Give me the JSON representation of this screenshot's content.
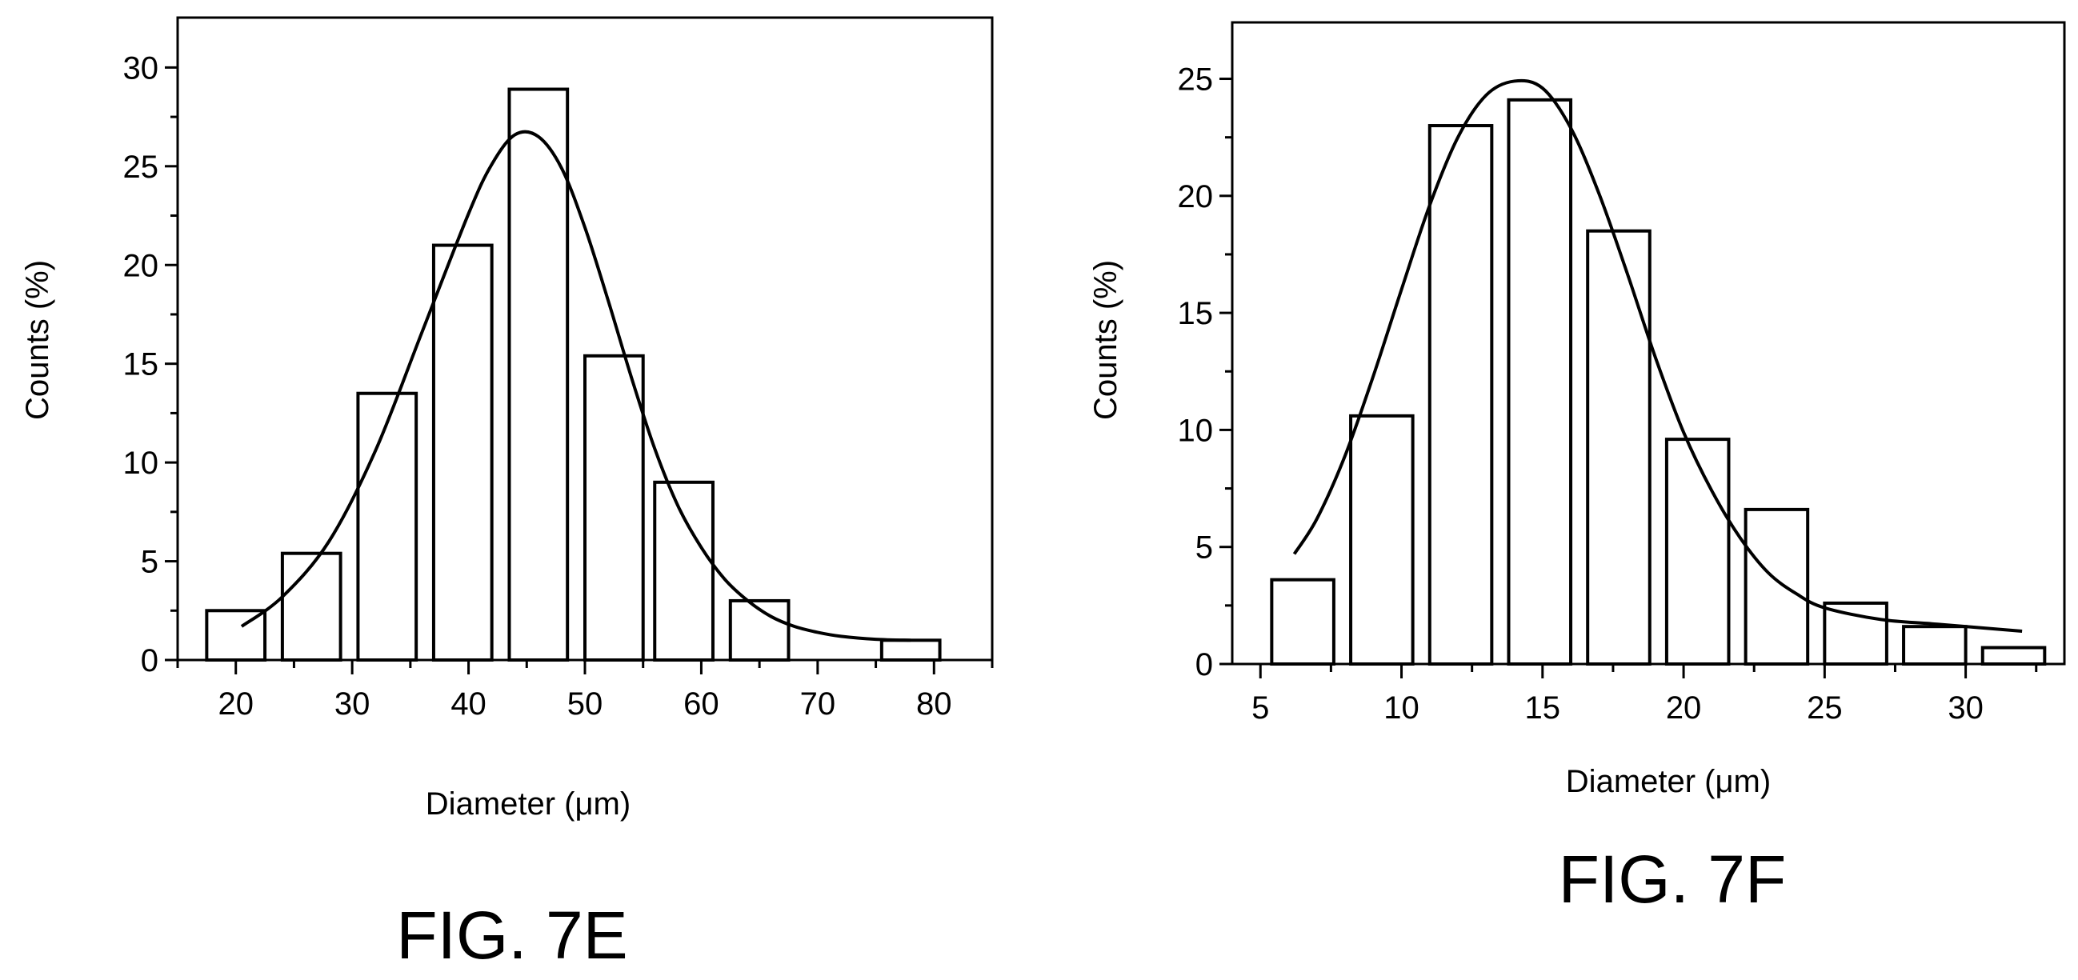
{
  "chart_data": [
    {
      "type": "bar",
      "figure_label": "FIG. 7E",
      "xlabel": "Diameter (μm)",
      "ylabel": "Counts (%)",
      "xlim": [
        15,
        85
      ],
      "ylim": [
        0,
        32
      ],
      "x_ticks": [
        20,
        30,
        40,
        50,
        60,
        70,
        80
      ],
      "y_ticks": [
        0,
        5,
        10,
        15,
        20,
        25,
        30
      ],
      "bars": [
        {
          "x0": 17.5,
          "x1": 22.5,
          "value": 2.5
        },
        {
          "x0": 24.0,
          "x1": 29.0,
          "value": 5.4
        },
        {
          "x0": 30.5,
          "x1": 35.5,
          "value": 13.5
        },
        {
          "x0": 37.0,
          "x1": 42.0,
          "value": 21.0
        },
        {
          "x0": 43.5,
          "x1": 48.5,
          "value": 28.9
        },
        {
          "x0": 50.0,
          "x1": 55.0,
          "value": 15.4
        },
        {
          "x0": 56.0,
          "x1": 61.0,
          "value": 9.0
        },
        {
          "x0": 62.5,
          "x1": 67.5,
          "value": 3.0
        },
        {
          "x0": 75.5,
          "x1": 80.5,
          "value": 1.0
        }
      ],
      "fit": {
        "x": [
          20.5,
          24,
          28,
          32,
          36,
          40,
          42,
          44,
          46,
          48,
          50,
          52,
          54,
          56,
          58,
          60,
          62,
          64,
          66,
          68,
          70,
          72,
          75,
          78
        ],
        "y": [
          1.7,
          3.2,
          6.0,
          10.6,
          16.6,
          22.6,
          25.1,
          26.6,
          26.5,
          24.9,
          21.9,
          18.2,
          14.3,
          10.7,
          7.8,
          5.7,
          4.1,
          3.0,
          2.2,
          1.7,
          1.4,
          1.2,
          1.05,
          1.0
        ]
      }
    },
    {
      "type": "bar",
      "figure_label": "FIG. 7F",
      "xlabel": "Diameter (μm)",
      "ylabel": "Counts (%)",
      "xlim": [
        4,
        33.5
      ],
      "ylim": [
        0,
        27
      ],
      "x_ticks": [
        5,
        10,
        15,
        20,
        25,
        30
      ],
      "y_ticks": [
        0,
        5,
        10,
        15,
        20,
        25
      ],
      "bars": [
        {
          "x0": 5.4,
          "x1": 7.6,
          "value": 3.6
        },
        {
          "x0": 8.2,
          "x1": 10.4,
          "value": 10.6
        },
        {
          "x0": 11.0,
          "x1": 13.2,
          "value": 23.0
        },
        {
          "x0": 13.8,
          "x1": 16.0,
          "value": 24.1
        },
        {
          "x0": 16.6,
          "x1": 18.8,
          "value": 18.5
        },
        {
          "x0": 19.4,
          "x1": 21.6,
          "value": 9.6
        },
        {
          "x0": 22.2,
          "x1": 24.4,
          "value": 6.6
        },
        {
          "x0": 25.0,
          "x1": 27.2,
          "value": 2.6
        },
        {
          "x0": 27.8,
          "x1": 30.0,
          "value": 1.6
        },
        {
          "x0": 30.6,
          "x1": 32.8,
          "value": 0.7
        }
      ],
      "fit": {
        "x": [
          6.2,
          7,
          8,
          9,
          10,
          11,
          12,
          13,
          14,
          15,
          16,
          17,
          18,
          19,
          20,
          21,
          22,
          23,
          24,
          25,
          27,
          29,
          32
        ],
        "y": [
          4.7,
          6.2,
          8.9,
          12.3,
          16.0,
          19.6,
          22.5,
          24.3,
          24.9,
          24.6,
          22.9,
          20.1,
          16.7,
          13.1,
          9.9,
          7.4,
          5.4,
          3.9,
          3.0,
          2.4,
          1.9,
          1.7,
          1.4
        ]
      }
    }
  ]
}
